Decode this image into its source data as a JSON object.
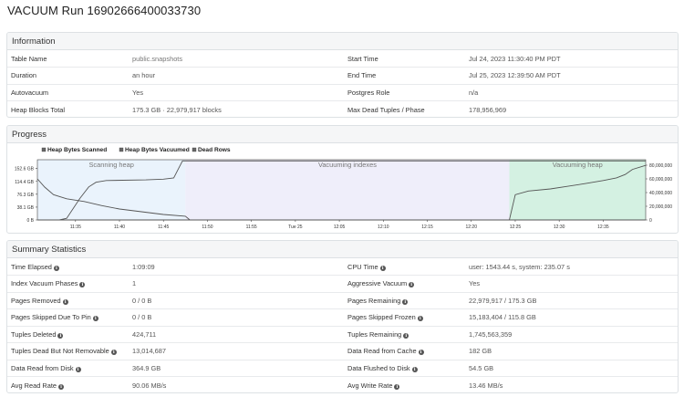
{
  "page": {
    "title": "VACUUM Run 16902666400033730"
  },
  "information": {
    "heading": "Information",
    "rows": [
      {
        "k1": "Table Name",
        "v1": "public.snapshots",
        "k2": "Start Time",
        "v2": "Jul 24, 2023 11:30:40 PM PDT"
      },
      {
        "k1": "Duration",
        "v1": "an hour",
        "k2": "End Time",
        "v2": "Jul 25, 2023 12:39:50 AM PDT"
      },
      {
        "k1": "Autovacuum",
        "v1": "Yes",
        "k2": "Postgres Role",
        "v2": "n/a"
      },
      {
        "k1": "Heap Blocks Total",
        "v1": "175.3 GB · 22,979,917 blocks",
        "k2": "Max Dead Tuples / Phase",
        "v2": "178,956,969"
      }
    ]
  },
  "progress": {
    "heading": "Progress",
    "legend": [
      "Heap Bytes Scanned",
      "Heap Bytes Vacuumed",
      "Dead Rows"
    ],
    "phases": [
      "Scanning heap",
      "Vacuuming indexes",
      "Vacuuming heap"
    ],
    "phase_colors": [
      "#eaf3fc",
      "#efeefa",
      "#d4f1e2"
    ]
  },
  "chart_data": {
    "type": "line",
    "x_ticks": [
      "11:35",
      "11:40",
      "11:45",
      "11:50",
      "11:55",
      "Tue 25",
      "12:05",
      "12:10",
      "12:15",
      "12:20",
      "12:25",
      "12:30",
      "12:35"
    ],
    "y_left_ticks": [
      "0 B",
      "38.1 GB",
      "76.3 GB",
      "114.4 GB",
      "152.6 GB"
    ],
    "y_right_ticks": [
      "0",
      "20,000,000",
      "40,000,000",
      "60,000,000",
      "80,000,000"
    ],
    "phases": [
      {
        "name": "Scanning heap",
        "start": "23:30:40",
        "end": "23:47:30"
      },
      {
        "name": "Vacuuming indexes",
        "start": "23:47:30",
        "end": "00:24:20"
      },
      {
        "name": "Vacuuming heap",
        "start": "00:24:20",
        "end": "00:39:50"
      }
    ],
    "series": [
      {
        "name": "Heap Bytes Scanned",
        "axis": "left",
        "unit": "GB",
        "points": [
          [
            "23:30:40",
            0
          ],
          [
            "23:33:10",
            0
          ],
          [
            "23:34:00",
            5
          ],
          [
            "23:35:30",
            64
          ],
          [
            "23:36:30",
            98
          ],
          [
            "23:37:20",
            112
          ],
          [
            "23:38:30",
            117
          ],
          [
            "23:43:00",
            119
          ],
          [
            "23:45:00",
            121
          ],
          [
            "23:46:10",
            125
          ],
          [
            "23:46:40",
            150
          ],
          [
            "23:47:10",
            175.3
          ],
          [
            "00:39:50",
            175.3
          ]
        ]
      },
      {
        "name": "Heap Bytes Vacuumed",
        "axis": "left",
        "unit": "GB",
        "points": [
          [
            "23:30:40",
            0
          ],
          [
            "00:24:20",
            0
          ],
          [
            "00:25:00",
            75
          ],
          [
            "00:26:30",
            86
          ],
          [
            "00:29:00",
            92
          ],
          [
            "00:31:00",
            100
          ],
          [
            "00:33:00",
            108
          ],
          [
            "00:35:00",
            117
          ],
          [
            "00:36:30",
            125
          ],
          [
            "00:37:30",
            135
          ],
          [
            "00:38:20",
            150
          ],
          [
            "00:39:50",
            162
          ]
        ]
      },
      {
        "name": "Dead Rows",
        "axis": "right",
        "unit": "rows",
        "points": [
          [
            "23:30:40",
            60000000
          ],
          [
            "23:31:30",
            48000000
          ],
          [
            "23:32:30",
            37000000
          ],
          [
            "23:34:00",
            31000000
          ],
          [
            "23:36:00",
            27000000
          ],
          [
            "23:38:00",
            21000000
          ],
          [
            "23:40:00",
            16000000
          ],
          [
            "23:42:30",
            12000000
          ],
          [
            "23:45:00",
            8000000
          ],
          [
            "23:47:30",
            5500000
          ],
          [
            "23:48:00",
            0
          ],
          [
            "00:39:50",
            0
          ]
        ]
      }
    ]
  },
  "summary": {
    "heading": "Summary Statistics",
    "rows": [
      {
        "k1": "Time Elapsed",
        "v1": "1:09:09",
        "k2": "CPU Time",
        "v2": "user: 1543.44 s, system: 235.07 s"
      },
      {
        "k1": "Index Vacuum Phases",
        "v1": "1",
        "k2": "Aggressive Vacuum",
        "v2": "Yes"
      },
      {
        "k1": "Pages Removed",
        "v1": "0 / 0 B",
        "k2": "Pages Remaining",
        "v2": "22,979,917 / 175.3 GB"
      },
      {
        "k1": "Pages Skipped Due To Pin",
        "v1": "0 / 0 B",
        "k2": "Pages Skipped Frozen",
        "v2": "15,183,404 / 115.8 GB"
      },
      {
        "k1": "Tuples Deleted",
        "v1": "424,711",
        "k2": "Tuples Remaining",
        "v2": "1,745,563,359"
      },
      {
        "k1": "Tuples Dead But Not Removable",
        "v1": "13,014,687",
        "k2": "Data Read from Cache",
        "v2": "182 GB"
      },
      {
        "k1": "Data Read from Disk",
        "v1": "364.9 GB",
        "k2": "Data Flushed to Disk",
        "v2": "54.5 GB"
      },
      {
        "k1": "Avg Read Rate",
        "v1": "90.06 MB/s",
        "k2": "Avg Write Rate",
        "v2": "13.46 MB/s"
      }
    ]
  }
}
